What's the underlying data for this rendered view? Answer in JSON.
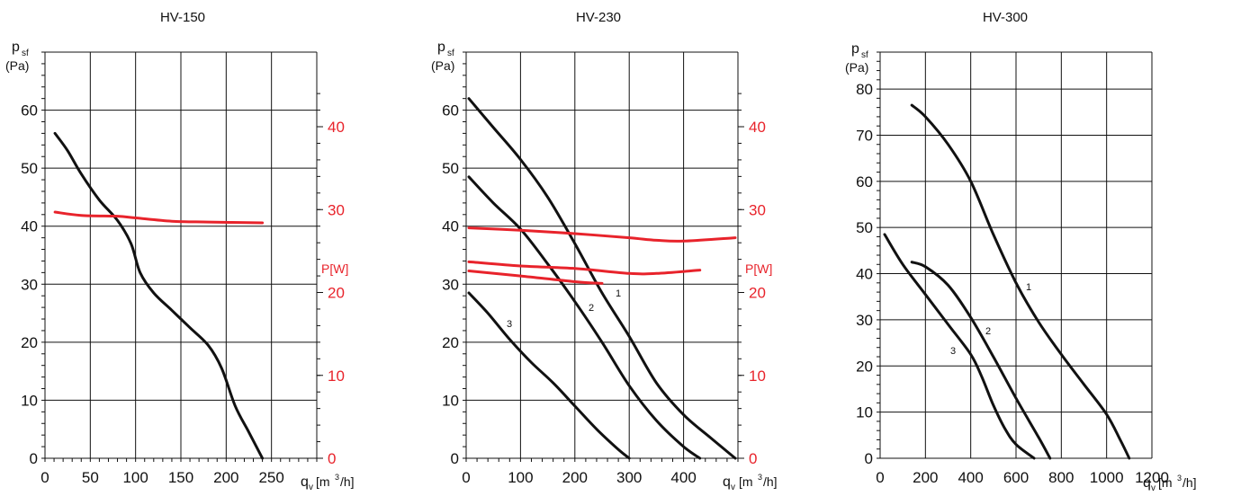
{
  "colors": {
    "pressure": "#111111",
    "power": "#e8232b",
    "grid": "#111111"
  },
  "chart_data": [
    {
      "type": "line",
      "title": "HV-150",
      "ylabel": "p",
      "ylabel_sub": "sf",
      "yunit": "(Pa)",
      "xlabel": "q",
      "xlabel_sub": "v",
      "xunit_pre": "[m",
      "xunit_sup": "3",
      "xunit_post": "/h]",
      "xlim": [
        0,
        300
      ],
      "ylim": [
        0,
        70
      ],
      "xticks": [
        "0",
        "50",
        "100",
        "150",
        "200",
        "250"
      ],
      "yticks": [
        "0",
        "10",
        "20",
        "30",
        "40",
        "50",
        "60"
      ],
      "grid": true,
      "y2label": "P[W]",
      "y2lim": [
        0,
        49
      ],
      "y2ticks": [
        "0",
        "10",
        "20",
        "30",
        "40"
      ],
      "series": [
        {
          "axis": "left",
          "color": "#111111",
          "x": [
            11,
            25,
            40,
            60,
            80,
            95,
            105,
            120,
            140,
            160,
            180,
            195,
            210,
            225,
            240
          ],
          "y": [
            56,
            53,
            49,
            44.5,
            41,
            37,
            32,
            28.5,
            25.5,
            22.5,
            19.5,
            15.5,
            9,
            4.5,
            0
          ]
        },
        {
          "axis": "right",
          "color": "#e8232b",
          "x": [
            11,
            40,
            80,
            100,
            140,
            180,
            240
          ],
          "y": [
            29.7,
            29.3,
            29.2,
            29.0,
            28.6,
            28.5,
            28.4
          ]
        }
      ]
    },
    {
      "type": "line",
      "title": "HV-230",
      "ylabel": "p",
      "ylabel_sub": "sf",
      "yunit": "(Pa)",
      "xlabel": "q",
      "xlabel_sub": "v",
      "xunit_pre": "[m",
      "xunit_sup": "3",
      "xunit_post": "/h]",
      "xlim": [
        0,
        500
      ],
      "ylim": [
        0,
        70
      ],
      "xticks": [
        "0",
        "100",
        "200",
        "300",
        "400"
      ],
      "yticks": [
        "0",
        "10",
        "20",
        "30",
        "40",
        "50",
        "60"
      ],
      "grid": true,
      "y2label": "P[W]",
      "y2lim": [
        0,
        49
      ],
      "y2ticks": [
        "0",
        "10",
        "20",
        "30",
        "40"
      ],
      "series": [
        {
          "name": "1",
          "axis": "left",
          "color": "#111111",
          "x": [
            5,
            50,
            100,
            150,
            200,
            250,
            300,
            350,
            400,
            450,
            495
          ],
          "y": [
            62,
            57,
            51.5,
            45,
            37,
            28.5,
            21,
            13,
            7.5,
            3.5,
            0
          ]
        },
        {
          "name": "2",
          "axis": "left",
          "color": "#111111",
          "x": [
            5,
            50,
            100,
            150,
            200,
            250,
            300,
            350,
            400,
            430
          ],
          "y": [
            48.5,
            44,
            39.5,
            33.5,
            27,
            20,
            12.5,
            6.5,
            2,
            0
          ]
        },
        {
          "name": "3",
          "axis": "left",
          "color": "#111111",
          "x": [
            5,
            40,
            80,
            120,
            160,
            200,
            240,
            280,
            300
          ],
          "y": [
            28.5,
            25,
            20.5,
            16.5,
            13,
            9,
            5,
            1.5,
            0
          ]
        },
        {
          "axis": "right",
          "color": "#e8232b",
          "x": [
            5,
            100,
            200,
            300,
            350,
            400,
            495
          ],
          "y": [
            27.8,
            27.5,
            27.1,
            26.6,
            26.3,
            26.2,
            26.6
          ]
        },
        {
          "axis": "right",
          "color": "#e8232b",
          "x": [
            5,
            100,
            200,
            300,
            350,
            430
          ],
          "y": [
            23.7,
            23.2,
            22.9,
            22.3,
            22.3,
            22.7
          ]
        },
        {
          "axis": "right",
          "color": "#e8232b",
          "x": [
            5,
            100,
            200,
            250
          ],
          "y": [
            22.6,
            22.0,
            21.3,
            21.1
          ]
        }
      ]
    },
    {
      "type": "line",
      "title": "HV-300",
      "ylabel": "p",
      "ylabel_sub": "sf",
      "yunit": "(Pa)",
      "xlabel": "q",
      "xlabel_sub": "v",
      "xunit_pre": "[m",
      "xunit_sup": "3",
      "xunit_post": "/h]",
      "xlim": [
        0,
        1200
      ],
      "ylim": [
        0,
        88
      ],
      "xticks": [
        "0",
        "200",
        "400",
        "600",
        "800",
        "1000",
        "1200"
      ],
      "yticks": [
        "0",
        "10",
        "20",
        "30",
        "40",
        "50",
        "60",
        "70",
        "80"
      ],
      "grid": true,
      "series": [
        {
          "name": "1",
          "axis": "left",
          "color": "#111111",
          "x": [
            140,
            200,
            300,
            400,
            500,
            600,
            700,
            800,
            900,
            1000,
            1060,
            1100
          ],
          "y": [
            76.5,
            74,
            68,
            60,
            48.5,
            38,
            29.5,
            22.5,
            16,
            9.5,
            4,
            0
          ]
        },
        {
          "name": "2",
          "axis": "left",
          "color": "#111111",
          "x": [
            140,
            200,
            300,
            400,
            500,
            600,
            700,
            750
          ],
          "y": [
            42.5,
            41.5,
            37.5,
            30.5,
            22,
            13,
            4.5,
            0
          ]
        },
        {
          "name": "3",
          "axis": "left",
          "color": "#111111",
          "x": [
            20,
            100,
            200,
            300,
            400,
            450,
            500,
            550,
            600,
            680
          ],
          "y": [
            48.5,
            42,
            35.5,
            29,
            22.5,
            17.5,
            11.5,
            6.5,
            3,
            0
          ]
        }
      ]
    }
  ]
}
